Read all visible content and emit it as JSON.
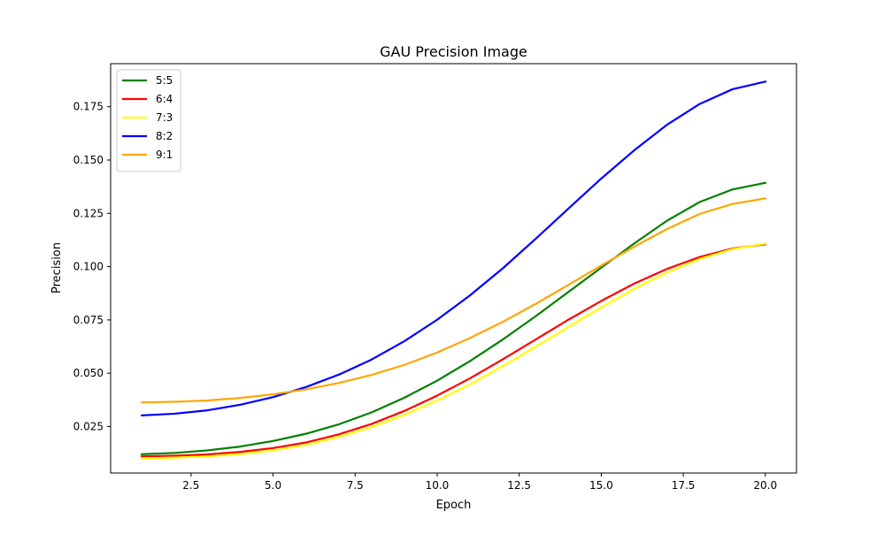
{
  "chart_data": {
    "type": "line",
    "title": "GAU Precision Image",
    "xlabel": "Epoch",
    "ylabel": "Precision",
    "xlim": [
      0.05,
      20.95
    ],
    "ylim": [
      0.0032,
      0.1952
    ],
    "xticks": [
      2.5,
      5.0,
      7.5,
      10.0,
      12.5,
      15.0,
      17.5,
      20.0
    ],
    "xtick_labels": [
      "2.5",
      "5.0",
      "7.5",
      "10.0",
      "12.5",
      "15.0",
      "17.5",
      "20.0"
    ],
    "yticks": [
      0.025,
      0.05,
      0.075,
      0.1,
      0.125,
      0.15,
      0.175
    ],
    "ytick_labels": [
      "0.025",
      "0.050",
      "0.075",
      "0.100",
      "0.125",
      "0.150",
      "0.175"
    ],
    "grid": false,
    "legend_position": "upper-left",
    "x": [
      1,
      2,
      3,
      4,
      5,
      6,
      7,
      8,
      9,
      10,
      11,
      12,
      13,
      14,
      15,
      16,
      17,
      18,
      19,
      20
    ],
    "series": [
      {
        "name": "5:5",
        "color": "#008000",
        "values": [
          0.012,
          0.0126,
          0.0138,
          0.0156,
          0.0182,
          0.0216,
          0.026,
          0.0316,
          0.0385,
          0.0465,
          0.0557,
          0.0658,
          0.0767,
          0.0881,
          0.0995,
          0.1108,
          0.1215,
          0.1303,
          0.1362,
          0.1393
        ]
      },
      {
        "name": "6:4",
        "color": "#ff0000",
        "values": [
          0.011,
          0.0113,
          0.0119,
          0.0131,
          0.0149,
          0.0175,
          0.0213,
          0.0262,
          0.0323,
          0.0395,
          0.0476,
          0.0565,
          0.0658,
          0.0751,
          0.0839,
          0.092,
          0.0989,
          0.1045,
          0.1085,
          0.1105
        ]
      },
      {
        "name": "7:3",
        "color": "#ffff00",
        "values": [
          0.01,
          0.0104,
          0.011,
          0.0121,
          0.0138,
          0.0164,
          0.0201,
          0.0248,
          0.0305,
          0.0372,
          0.0448,
          0.0533,
          0.0624,
          0.0717,
          0.0809,
          0.0895,
          0.0972,
          0.1036,
          0.1082,
          0.1108
        ]
      },
      {
        "name": "8:2",
        "color": "#0000ff",
        "values": [
          0.0302,
          0.031,
          0.0326,
          0.0352,
          0.0388,
          0.0435,
          0.0493,
          0.0564,
          0.065,
          0.0751,
          0.0865,
          0.0992,
          0.113,
          0.1272,
          0.1413,
          0.1545,
          0.1665,
          0.1763,
          0.1832,
          0.1868
        ]
      },
      {
        "name": "9:1",
        "color": "#ffa500",
        "values": [
          0.0363,
          0.0366,
          0.0372,
          0.0384,
          0.0401,
          0.0424,
          0.0454,
          0.0492,
          0.0539,
          0.0597,
          0.0665,
          0.0741,
          0.0825,
          0.0914,
          0.1005,
          0.1093,
          0.1176,
          0.1247,
          0.1294,
          0.132
        ]
      }
    ]
  }
}
